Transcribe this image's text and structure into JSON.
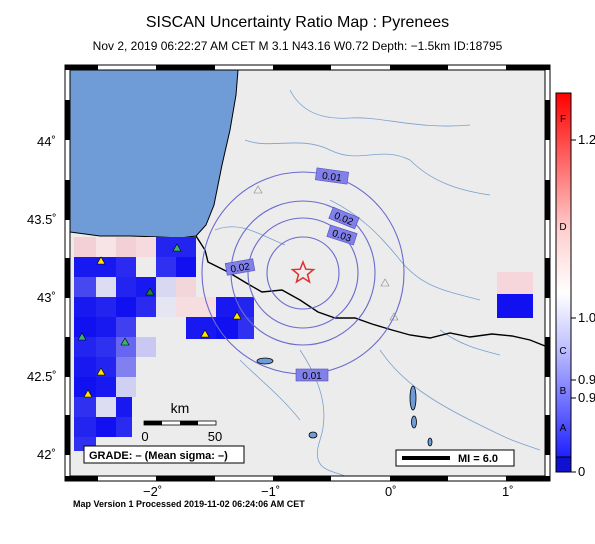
{
  "header": {
    "title": "SISCAN Uncertainty Ratio Map : Pyrenees",
    "subtitle": "Nov  2, 2019 06:22:27 AM CET   M 3.1   N43.16 W0.72   Depth: −1.5km   ID:18795"
  },
  "footer": {
    "processed": "Map Version 1 Processed 2019-11-02 06:24:06 AM CET"
  },
  "map": {
    "lat_ticks": [
      "44˚",
      "43.5˚",
      "43˚",
      "42.5˚",
      "42˚"
    ],
    "lon_ticks": [
      "−2˚",
      "−1˚",
      "0˚",
      "1˚"
    ],
    "contour_labels": [
      "0.01",
      "0.02",
      "0.03",
      "0.02",
      "0.01"
    ],
    "scale": {
      "unit": "km",
      "start": "0",
      "end": "50"
    },
    "grade": "GRADE: – (Mean sigma: –)",
    "mi_legend": "MI = 6.0",
    "colors": {
      "sea": "#6f9bd6",
      "land": "#ececec",
      "high": "#0000e6",
      "epicenter": "#e03030"
    }
  },
  "colorbar": {
    "letters": [
      "F",
      "D",
      "C",
      "B",
      "A"
    ],
    "values": [
      "1.2",
      "1.0",
      "0.9",
      "0.9",
      "0"
    ]
  }
}
